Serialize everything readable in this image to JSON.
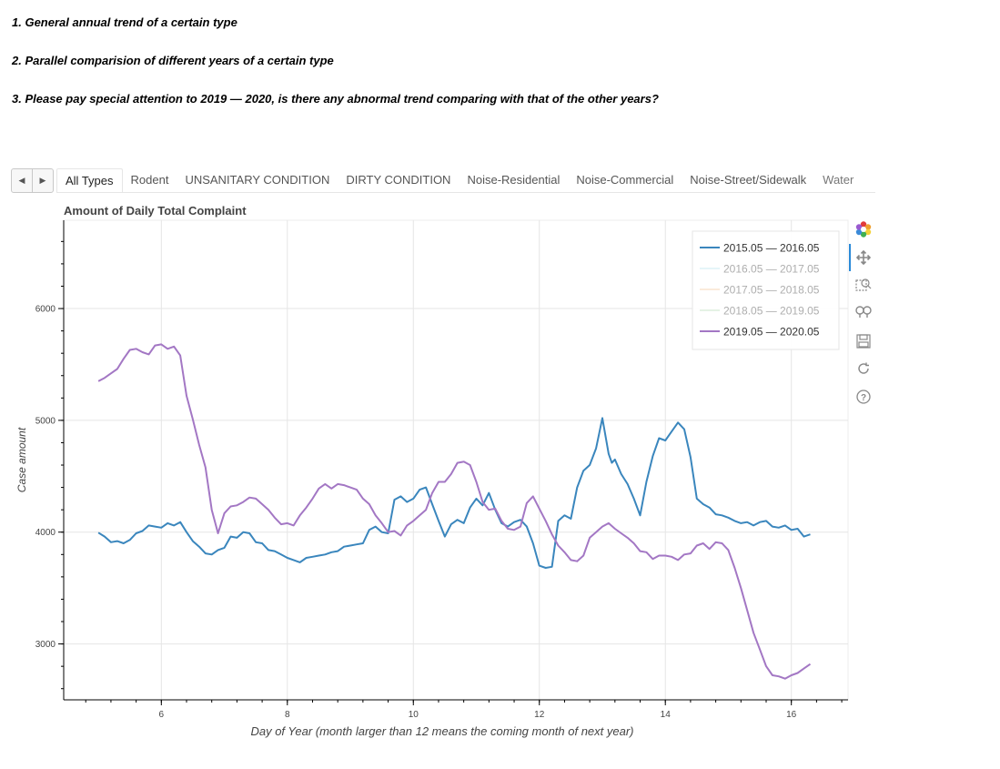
{
  "notes": [
    "1. General annual trend of a certain type",
    "2. Parallel comparision of different years of a certain type",
    "3. Please pay special attention to 2019 — 2020, is there any abnormal trend comparing with that of the other years?"
  ],
  "tabs": [
    "All Types",
    "Rodent",
    "UNSANITARY CONDITION",
    "DIRTY CONDITION",
    "Noise-Residential",
    "Noise-Commercial",
    "Noise-Street/Sidewalk",
    "Water"
  ],
  "active_tab": 0,
  "toolbar": [
    "bokeh-logo-icon",
    "pan-icon",
    "box-zoom-icon",
    "wheel-zoom-icon",
    "save-icon",
    "reset-icon",
    "help-icon"
  ],
  "chart_data": {
    "type": "line",
    "title": "Amount of Daily Total Complaint",
    "xlabel": "Day of Year (month larger than 12 means the coming month of next year)",
    "ylabel": "Case amount",
    "xlim": [
      4.45,
      16.9
    ],
    "ylim": [
      2500,
      6790
    ],
    "xticks": [
      6,
      8,
      10,
      12,
      14,
      16
    ],
    "yticks": [
      3000,
      4000,
      5000,
      6000
    ],
    "grid": true,
    "legend_position": "top-right",
    "series": [
      {
        "name": "2015.05 — 2016.05",
        "color": "#3a86bd",
        "visible": true,
        "x": [
          5.0,
          5.1,
          5.2,
          5.3,
          5.4,
          5.5,
          5.6,
          5.7,
          5.8,
          5.9,
          6.0,
          6.1,
          6.2,
          6.3,
          6.4,
          6.5,
          6.6,
          6.7,
          6.8,
          6.9,
          7.0,
          7.1,
          7.2,
          7.3,
          7.4,
          7.5,
          7.6,
          7.7,
          7.8,
          7.9,
          8.0,
          8.1,
          8.2,
          8.3,
          8.4,
          8.5,
          8.6,
          8.7,
          8.8,
          8.9,
          9.0,
          9.1,
          9.2,
          9.3,
          9.4,
          9.5,
          9.6,
          9.7,
          9.8,
          9.9,
          10.0,
          10.1,
          10.2,
          10.3,
          10.4,
          10.5,
          10.6,
          10.7,
          10.8,
          10.9,
          11.0,
          11.1,
          11.2,
          11.3,
          11.4,
          11.5,
          11.6,
          11.7,
          11.8,
          11.9,
          12.0,
          12.1,
          12.2,
          12.3,
          12.4,
          12.5,
          12.6,
          12.7,
          12.8,
          12.9,
          13.0,
          13.1,
          13.15,
          13.2,
          13.3,
          13.4,
          13.5,
          13.6,
          13.7,
          13.8,
          13.9,
          14.0,
          14.1,
          14.2,
          14.3,
          14.4,
          14.5,
          14.6,
          14.7,
          14.8,
          14.9,
          15.0,
          15.1,
          15.2,
          15.3,
          15.4,
          15.5,
          15.6,
          15.7,
          15.8,
          15.9,
          16.0,
          16.1,
          16.2,
          16.3
        ],
        "y": [
          3995,
          3960,
          3910,
          3920,
          3900,
          3930,
          3990,
          4010,
          4060,
          4050,
          4040,
          4080,
          4060,
          4090,
          4000,
          3920,
          3870,
          3810,
          3800,
          3840,
          3860,
          3960,
          3950,
          4000,
          3990,
          3910,
          3900,
          3840,
          3830,
          3800,
          3770,
          3750,
          3730,
          3770,
          3780,
          3790,
          3800,
          3820,
          3830,
          3870,
          3880,
          3890,
          3900,
          4020,
          4050,
          4000,
          3990,
          4290,
          4320,
          4270,
          4300,
          4380,
          4400,
          4250,
          4100,
          3960,
          4070,
          4110,
          4080,
          4220,
          4300,
          4240,
          4350,
          4200,
          4080,
          4050,
          4090,
          4110,
          4050,
          3900,
          3700,
          3680,
          3690,
          4100,
          4150,
          4120,
          4400,
          4550,
          4600,
          4750,
          5020,
          4700,
          4620,
          4650,
          4520,
          4430,
          4300,
          4150,
          4450,
          4680,
          4840,
          4820,
          4900,
          4980,
          4920,
          4670,
          4300,
          4250,
          4220,
          4160,
          4150,
          4130,
          4100,
          4080,
          4090,
          4060,
          4090,
          4100,
          4050,
          4040,
          4060,
          4020,
          4030,
          3960,
          3980
        ]
      },
      {
        "name": "2016.05 — 2017.05",
        "color": "#bfe7f2",
        "visible": false,
        "x": [],
        "y": []
      },
      {
        "name": "2017.05 — 2018.05",
        "color": "#f7cfa6",
        "visible": false,
        "x": [],
        "y": []
      },
      {
        "name": "2018.05 — 2019.05",
        "color": "#bfe0c0",
        "visible": false,
        "x": [],
        "y": []
      },
      {
        "name": "2019.05 — 2020.05",
        "color": "#a377c4",
        "visible": true,
        "x": [
          5.0,
          5.1,
          5.2,
          5.3,
          5.4,
          5.5,
          5.6,
          5.7,
          5.8,
          5.9,
          6.0,
          6.1,
          6.2,
          6.3,
          6.4,
          6.5,
          6.6,
          6.7,
          6.8,
          6.9,
          7.0,
          7.1,
          7.2,
          7.3,
          7.4,
          7.5,
          7.6,
          7.7,
          7.8,
          7.9,
          8.0,
          8.1,
          8.2,
          8.3,
          8.4,
          8.5,
          8.6,
          8.7,
          8.8,
          8.9,
          9.0,
          9.1,
          9.2,
          9.3,
          9.4,
          9.5,
          9.6,
          9.7,
          9.8,
          9.9,
          10.0,
          10.1,
          10.2,
          10.3,
          10.4,
          10.5,
          10.6,
          10.7,
          10.8,
          10.9,
          11.0,
          11.1,
          11.2,
          11.3,
          11.4,
          11.5,
          11.6,
          11.7,
          11.8,
          11.9,
          12.0,
          12.1,
          12.2,
          12.3,
          12.4,
          12.5,
          12.6,
          12.7,
          12.8,
          12.9,
          13.0,
          13.1,
          13.2,
          13.3,
          13.4,
          13.5,
          13.6,
          13.7,
          13.8,
          13.9,
          14.0,
          14.1,
          14.2,
          14.3,
          14.4,
          14.5,
          14.6,
          14.7,
          14.8,
          14.9,
          15.0,
          15.1,
          15.2,
          15.3,
          15.4,
          15.5,
          15.6,
          15.7,
          15.8,
          15.9,
          16.0,
          16.1,
          16.2,
          16.3
        ],
        "y": [
          5350,
          5380,
          5420,
          5460,
          5550,
          5630,
          5640,
          5610,
          5590,
          5670,
          5680,
          5640,
          5660,
          5580,
          5220,
          5010,
          4780,
          4580,
          4200,
          3990,
          4170,
          4230,
          4240,
          4270,
          4310,
          4300,
          4250,
          4200,
          4130,
          4070,
          4080,
          4060,
          4150,
          4220,
          4300,
          4390,
          4430,
          4390,
          4430,
          4420,
          4400,
          4380,
          4300,
          4250,
          4150,
          4080,
          4000,
          4010,
          3970,
          4060,
          4100,
          4150,
          4200,
          4350,
          4450,
          4450,
          4520,
          4620,
          4630,
          4600,
          4450,
          4270,
          4200,
          4210,
          4100,
          4030,
          4020,
          4050,
          4260,
          4320,
          4210,
          4100,
          3980,
          3880,
          3820,
          3750,
          3740,
          3790,
          3950,
          4000,
          4050,
          4080,
          4030,
          3990,
          3950,
          3900,
          3830,
          3820,
          3760,
          3790,
          3790,
          3780,
          3750,
          3800,
          3810,
          3880,
          3900,
          3850,
          3910,
          3900,
          3840,
          3680,
          3500,
          3300,
          3100,
          2950,
          2800,
          2720,
          2710,
          2690,
          2720,
          2740,
          2780,
          2820
        ]
      }
    ]
  }
}
